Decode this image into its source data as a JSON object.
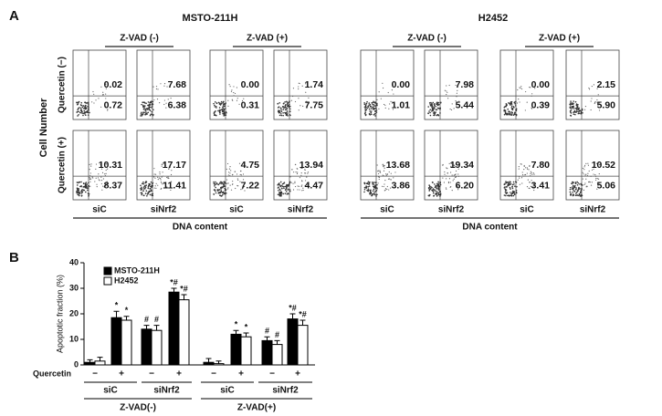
{
  "panel_a": {
    "label": "A",
    "y_label": "Cell Number",
    "row_labels": [
      "Quercetin (−)",
      "Quercetin (+)"
    ],
    "cell_lines": [
      {
        "name": "MSTO-211H",
        "zvad_labels": [
          "Z-VAD (-)",
          "Z-VAD (+)"
        ],
        "columns": [
          "siC",
          "siNrf2",
          "siC",
          "siNrf2"
        ],
        "x_label": "DNA content",
        "plots": [
          [
            [
              "0.02",
              "0.72"
            ],
            [
              "7.68",
              "6.38"
            ],
            [
              "0.00",
              "0.31"
            ],
            [
              "1.74",
              "7.75"
            ]
          ],
          [
            [
              "10.31",
              "8.37"
            ],
            [
              "17.17",
              "11.41"
            ],
            [
              "4.75",
              "7.22"
            ],
            [
              "13.94",
              "4.47"
            ]
          ]
        ]
      },
      {
        "name": "H2452",
        "zvad_labels": [
          "Z-VAD (-)",
          "Z-VAD (+)"
        ],
        "columns": [
          "siC",
          "siNrf2",
          "siC",
          "siNrf2"
        ],
        "x_label": "DNA content",
        "plots": [
          [
            [
              "0.00",
              "1.01"
            ],
            [
              "7.98",
              "5.44"
            ],
            [
              "0.00",
              "0.39"
            ],
            [
              "2.15",
              "5.90"
            ]
          ],
          [
            [
              "13.68",
              "3.86"
            ],
            [
              "19.34",
              "6.20"
            ],
            [
              "7.80",
              "3.41"
            ],
            [
              "10.52",
              "5.06"
            ]
          ]
        ]
      }
    ]
  },
  "chart_data": {
    "type": "bar",
    "label": "B",
    "y_label": "Apoptotic fraction (%)",
    "ylim": [
      0,
      40
    ],
    "yticks": [
      0,
      10,
      20,
      30,
      40
    ],
    "x_label": "Quercetin",
    "categories": [
      "−",
      "+",
      "−",
      "+",
      "−",
      "+",
      "−",
      "+"
    ],
    "sirna_groups": [
      "siC",
      "siNrf2",
      "siC",
      "siNrf2"
    ],
    "zvad_groups": [
      "Z-VAD(-)",
      "Z-VAD(+)"
    ],
    "legend": "top-left",
    "series": [
      {
        "name": "MSTO-211H",
        "color": "#000000",
        "values": [
          1,
          18.5,
          14,
          28.5,
          1,
          12,
          9.5,
          18
        ],
        "errors": [
          1,
          2.5,
          1.5,
          1.5,
          1.5,
          1.5,
          1.5,
          2
        ],
        "annotations": [
          null,
          "*",
          "#",
          "*#",
          null,
          "*",
          "#",
          "*#"
        ]
      },
      {
        "name": "H2452",
        "color": "#ffffff",
        "values": [
          1.5,
          17.5,
          13.5,
          25.5,
          0.5,
          11,
          8,
          15.5
        ],
        "errors": [
          1.5,
          1.5,
          2,
          2,
          1,
          1.5,
          1.5,
          2
        ],
        "annotations": [
          null,
          "*",
          "#",
          "*#",
          null,
          "*",
          "#",
          "*#"
        ]
      }
    ]
  }
}
